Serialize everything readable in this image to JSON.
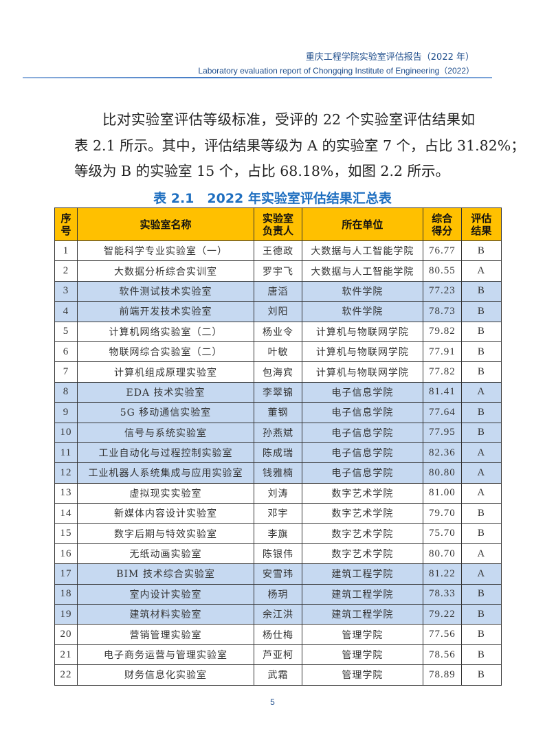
{
  "header": {
    "title_cn": "重庆工程学院实验室评估报告（2022 年）",
    "title_en": "Laboratory evaluation report of Chongqing Institute of Engineering（2022）"
  },
  "paragraph": {
    "lines": [
      "比对实验室评估等级标准，受评的 22 个实验室评估结果如",
      "表 2.1 所示。其中，评估结果等级为 A 的实验室 7 个，占比 31.82%；",
      "等级为 B 的实验室 15 个，占比 68.18%，如图 2.2 所示。"
    ]
  },
  "table": {
    "caption": "表 2.1　2022 年实验室评估结果汇总表",
    "header_color": "#ffc000",
    "highlight_color": "#c6d9f1",
    "columns": [
      [
        "序",
        "号"
      ],
      [
        "实验室名称"
      ],
      [
        "实验室",
        "负责人"
      ],
      [
        "所在单位"
      ],
      [
        "综合",
        "得分"
      ],
      [
        "评估",
        "结果"
      ]
    ],
    "rows": [
      {
        "no": "1",
        "name": "智能科学专业实验室（一）",
        "head": "王德政",
        "unit": "大数据与人工智能学院",
        "score": "76.77",
        "grade": "B",
        "hl": false
      },
      {
        "no": "2",
        "name": "大数据分析综合实训室",
        "head": "罗宇飞",
        "unit": "大数据与人工智能学院",
        "score": "80.55",
        "grade": "A",
        "hl": false
      },
      {
        "no": "3",
        "name": "软件测试技术实验室",
        "head": "唐滔",
        "unit": "软件学院",
        "score": "77.23",
        "grade": "B",
        "hl": true
      },
      {
        "no": "4",
        "name": "前端开发技术实验室",
        "head": "刘阳",
        "unit": "软件学院",
        "score": "78.73",
        "grade": "B",
        "hl": true
      },
      {
        "no": "5",
        "name": "计算机网络实验室（二）",
        "head": "杨业令",
        "unit": "计算机与物联网学院",
        "score": "79.82",
        "grade": "B",
        "hl": false
      },
      {
        "no": "6",
        "name": "物联网综合实验室（二）",
        "head": "叶敏",
        "unit": "计算机与物联网学院",
        "score": "77.91",
        "grade": "B",
        "hl": false
      },
      {
        "no": "7",
        "name": "计算机组成原理实验室",
        "head": "包海宾",
        "unit": "计算机与物联网学院",
        "score": "77.82",
        "grade": "B",
        "hl": false
      },
      {
        "no": "8",
        "name": "EDA 技术实验室",
        "head": "李翠锦",
        "unit": "电子信息学院",
        "score": "81.41",
        "grade": "A",
        "hl": true
      },
      {
        "no": "9",
        "name": "5G 移动通信实验室",
        "head": "董钢",
        "unit": "电子信息学院",
        "score": "77.64",
        "grade": "B",
        "hl": true
      },
      {
        "no": "10",
        "name": "信号与系统实验室",
        "head": "孙燕斌",
        "unit": "电子信息学院",
        "score": "77.95",
        "grade": "B",
        "hl": true
      },
      {
        "no": "11",
        "name": "工业自动化与过程控制实验室",
        "head": "陈成瑞",
        "unit": "电子信息学院",
        "score": "82.36",
        "grade": "A",
        "hl": true
      },
      {
        "no": "12",
        "name": "工业机器人系统集成与应用实验室",
        "head": "钱雅楠",
        "unit": "电子信息学院",
        "score": "80.80",
        "grade": "A",
        "hl": true
      },
      {
        "no": "13",
        "name": "虚拟现实实验室",
        "head": "刘涛",
        "unit": "数字艺术学院",
        "score": "81.00",
        "grade": "A",
        "hl": false
      },
      {
        "no": "14",
        "name": "新媒体内容设计实验室",
        "head": "邓宇",
        "unit": "数字艺术学院",
        "score": "79.70",
        "grade": "B",
        "hl": false
      },
      {
        "no": "15",
        "name": "数字后期与特效实验室",
        "head": "李旗",
        "unit": "数字艺术学院",
        "score": "75.70",
        "grade": "B",
        "hl": false
      },
      {
        "no": "16",
        "name": "无纸动画实验室",
        "head": "陈银伟",
        "unit": "数字艺术学院",
        "score": "80.70",
        "grade": "A",
        "hl": false
      },
      {
        "no": "17",
        "name": "BIM 技术综合实验室",
        "head": "安雪玮",
        "unit": "建筑工程学院",
        "score": "81.22",
        "grade": "A",
        "hl": true
      },
      {
        "no": "18",
        "name": "室内设计实验室",
        "head": "杨玥",
        "unit": "建筑工程学院",
        "score": "78.33",
        "grade": "B",
        "hl": true
      },
      {
        "no": "19",
        "name": "建筑材料实验室",
        "head": "余江洪",
        "unit": "建筑工程学院",
        "score": "79.22",
        "grade": "B",
        "hl": true
      },
      {
        "no": "20",
        "name": "营销管理实验室",
        "head": "杨仕梅",
        "unit": "管理学院",
        "score": "77.56",
        "grade": "B",
        "hl": false
      },
      {
        "no": "21",
        "name": "电子商务运营与管理实验室",
        "head": "芦亚柯",
        "unit": "管理学院",
        "score": "78.56",
        "grade": "B",
        "hl": false
      },
      {
        "no": "22",
        "name": "财务信息化实验室",
        "head": "武霜",
        "unit": "管理学院",
        "score": "78.89",
        "grade": "B",
        "hl": false
      }
    ]
  },
  "page_number": "5"
}
